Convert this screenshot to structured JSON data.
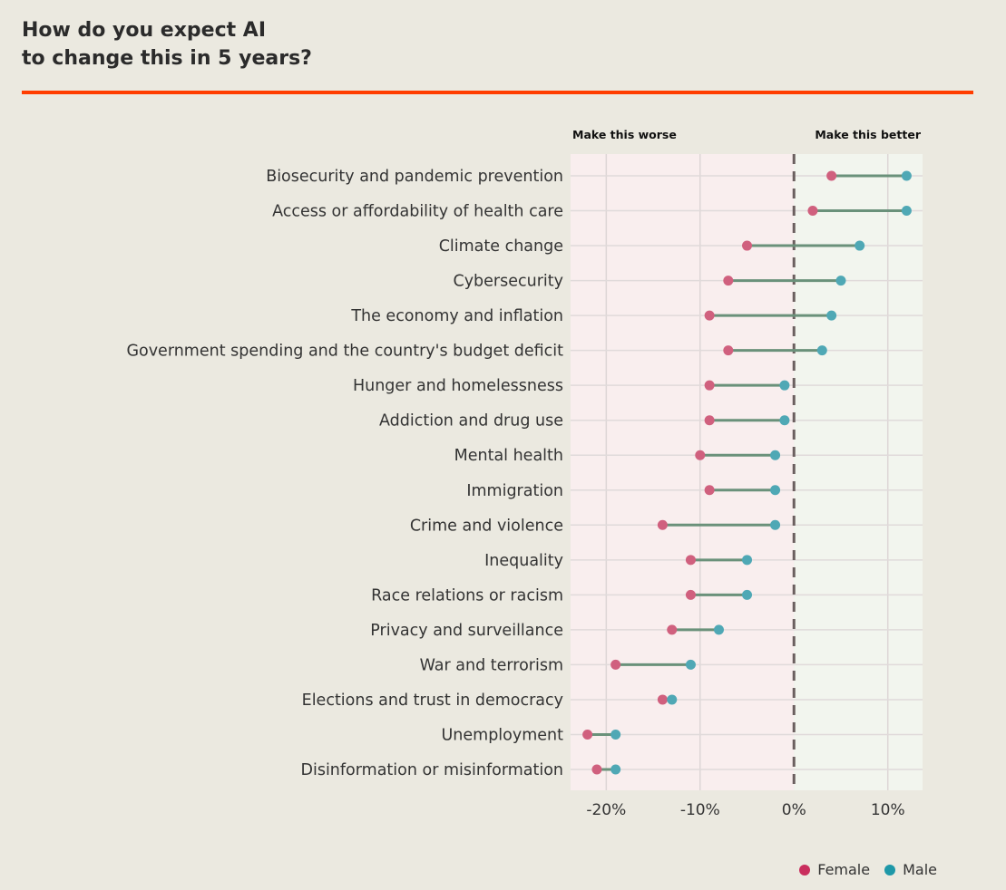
{
  "header": {
    "title_line1": "How do you expect AI",
    "title_line2": "to change this in 5 years?"
  },
  "colors": {
    "accent": "#ff3d00",
    "female": "#d0607e",
    "male": "#4fa8b5",
    "line": "#6a917a",
    "worse_bg": "#f9eeee",
    "better_bg": "#f2f5ee"
  },
  "chart_data": {
    "type": "dumbbell",
    "title": "How do you expect AI to change this in 5 years?",
    "annotation_left": "Make this worse",
    "annotation_right": "Make this better",
    "xlim": [
      -23.8,
      13.7
    ],
    "xticks": [
      -20,
      -10,
      0,
      10
    ],
    "xtick_labels": [
      "-20%",
      "-10%",
      "0%",
      "10%"
    ],
    "legend": [
      {
        "name": "Female",
        "color": "#c92e5d"
      },
      {
        "name": "Male",
        "color": "#1e98a8"
      }
    ],
    "legend_position": "bottom-right",
    "categories": [
      "Biosecurity and pandemic prevention",
      "Access or affordability of health care",
      "Climate change",
      "Cybersecurity",
      "The economy and inflation",
      "Government spending and the country's budget deficit",
      "Hunger and homelessness",
      "Addiction and drug use",
      "Mental health",
      "Immigration",
      "Crime and violence",
      "Inequality",
      "Race relations or racism",
      "Privacy and surveillance",
      "War and terrorism",
      "Elections and trust in democracy",
      "Unemployment",
      "Disinformation or misinformation"
    ],
    "series": [
      {
        "name": "Female",
        "values": [
          4,
          2,
          -5,
          -7,
          -9,
          -7,
          -9,
          -9,
          -10,
          -9,
          -14,
          -11,
          -11,
          -13,
          -19,
          -14,
          -22,
          -21
        ]
      },
      {
        "name": "Male",
        "values": [
          12,
          12,
          7,
          5,
          4,
          3,
          -1,
          -1,
          -2,
          -2,
          -2,
          -5,
          -5,
          -8,
          -11,
          -13,
          -19,
          -19
        ]
      }
    ]
  }
}
